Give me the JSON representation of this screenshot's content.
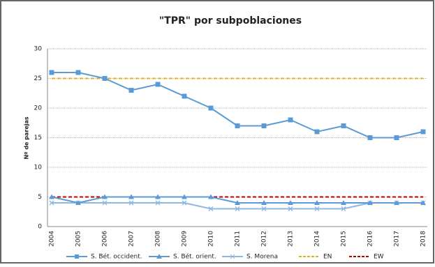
{
  "chart_data": {
    "type": "line",
    "title": "\"TPR\" por subpoblaciones",
    "y_label": "Nº de parejas",
    "categories": [
      "2004",
      "2005",
      "2006",
      "2007",
      "2008",
      "2009",
      "2010",
      "2011",
      "2012",
      "2013",
      "2014",
      "2015",
      "2016",
      "2017",
      "2018"
    ],
    "ylim": [
      0,
      30
    ],
    "yticks": [
      0,
      5,
      10,
      15,
      20,
      25,
      30
    ],
    "grid": true,
    "series": [
      {
        "name": "S. Bét. occident.",
        "color": "#5b9bd5",
        "marker": "square",
        "values": [
          26,
          26,
          25,
          23,
          24,
          22,
          20,
          17,
          17,
          18,
          16,
          17,
          15,
          15,
          16
        ]
      },
      {
        "name": "S. Bét. orient.",
        "color": "#5b9bd5",
        "marker": "triangle",
        "values": [
          5,
          4,
          5,
          5,
          5,
          5,
          5,
          4,
          4,
          4,
          4,
          4,
          4,
          4,
          4
        ]
      },
      {
        "name": "S. Morena",
        "color": "#8fb8e0",
        "marker": "x",
        "values": [
          4,
          4,
          4,
          4,
          4,
          4,
          3,
          3,
          3,
          3,
          3,
          3,
          4,
          4,
          4
        ]
      },
      {
        "name": "EN",
        "color": "#e0b020",
        "dashed": true,
        "values": [
          25,
          25,
          25,
          25,
          25,
          25,
          25,
          25,
          25,
          25,
          25,
          25,
          25,
          25,
          25
        ]
      },
      {
        "name": "EW",
        "color": "#c00000",
        "dashed": true,
        "values": [
          5,
          5,
          5,
          5,
          5,
          5,
          5,
          5,
          5,
          5,
          5,
          5,
          5,
          5,
          5
        ]
      }
    ]
  }
}
